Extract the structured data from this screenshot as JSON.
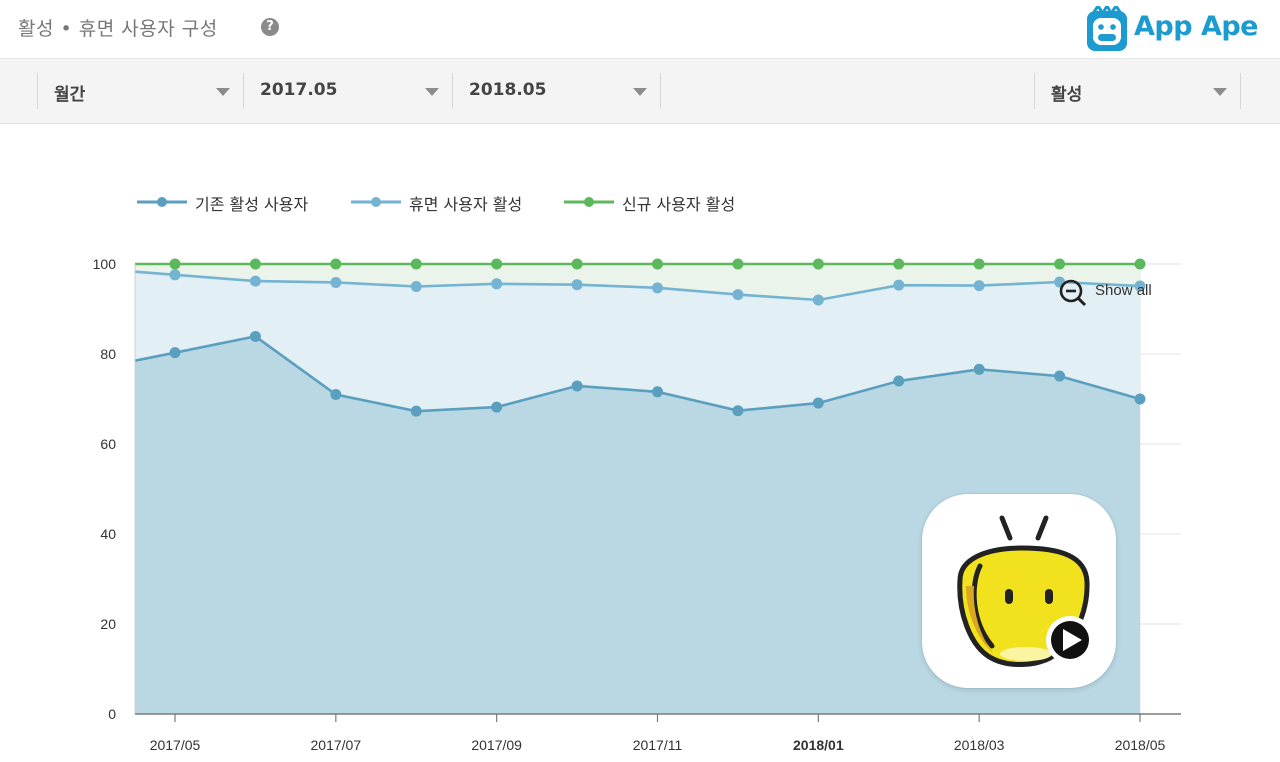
{
  "header": {
    "title": "활성 • 휴면 사용자 구성",
    "help_icon": "question-circle-icon",
    "brand": "App Ape",
    "brand_icon": "ape-mascot-icon",
    "brand_color": "#1c9bd0"
  },
  "toolbar": {
    "period": "월간",
    "start_month": "2017.05",
    "end_month": "2018.05",
    "metric": "활성"
  },
  "show_all_label": "Show all",
  "show_all_icon": "zoom-out-icon",
  "app_icon": "yellow-mascot-app-icon",
  "chart_data": {
    "type": "area",
    "x": [
      "2017/05",
      "2017/06",
      "2017/07",
      "2017/08",
      "2017/09",
      "2017/10",
      "2017/11",
      "2017/12",
      "2018/01",
      "2018/02",
      "2018/03",
      "2018/04",
      "2018/05"
    ],
    "x_tick_labels": [
      "2017/05",
      "2017/07",
      "2017/09",
      "2017/11",
      "2018/01",
      "2018/03",
      "2018/05"
    ],
    "x_tick_bold": "2018/01",
    "ylim": [
      0,
      100
    ],
    "y_ticks": [
      0,
      20,
      40,
      60,
      80,
      100
    ],
    "grid": true,
    "legend": "top-left",
    "series": [
      {
        "name": "기존 활성 사용자",
        "color": "#5b9fbf",
        "fill": "#b9d8e3",
        "values": [
          80.3,
          83.9,
          71.0,
          67.3,
          68.2,
          72.9,
          71.6,
          67.4,
          69.1,
          74.0,
          76.6,
          75.1,
          70.0
        ]
      },
      {
        "name": "휴면 사용자 활성",
        "color": "#74b3d2",
        "fill": "#e2eff5",
        "values": [
          97.6,
          96.2,
          95.9,
          95.0,
          95.6,
          95.4,
          94.7,
          93.2,
          92.0,
          95.3,
          95.2,
          96.0,
          95.1
        ]
      },
      {
        "name": "신규 사용자 활성",
        "color": "#5cb85c",
        "fill": "#eaf4ea",
        "values": [
          100,
          100,
          100,
          100,
          100,
          100,
          100,
          100,
          100,
          100,
          100,
          100,
          100
        ]
      }
    ]
  }
}
